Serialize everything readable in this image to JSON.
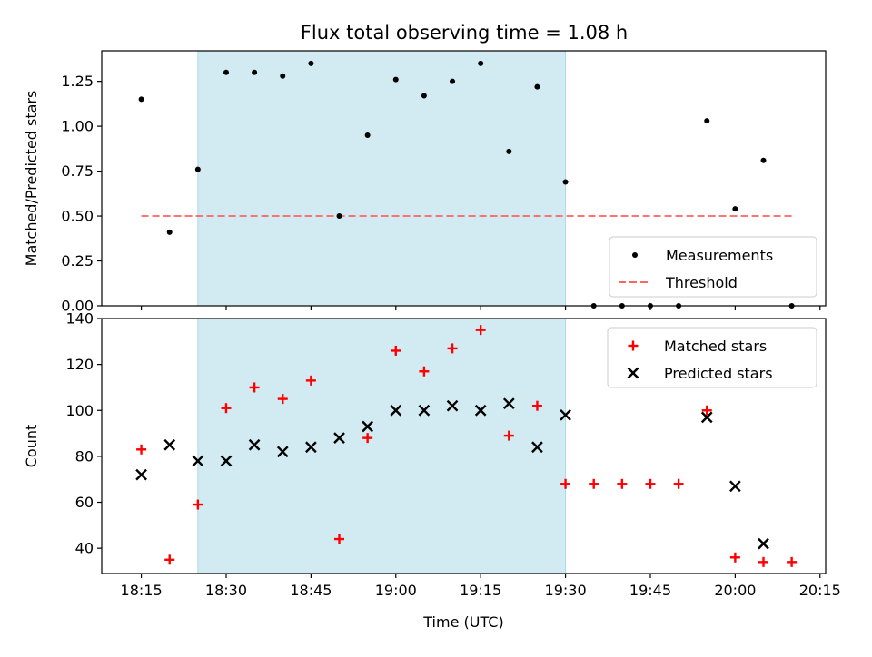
{
  "figure": {
    "title": "Flux total observing time = 1.08 h"
  },
  "chart_data": [
    {
      "type": "scatter",
      "panel": "top",
      "ylabel": "Matched/Predicted stars",
      "xlabel": "",
      "xlim": [
        "18:08",
        "20:16"
      ],
      "ylim": [
        0,
        1.42
      ],
      "y_ticks": [
        "0.00",
        "0.25",
        "0.50",
        "0.75",
        "1.00",
        "1.25"
      ],
      "y_tick_values": [
        0,
        0.25,
        0.5,
        0.75,
        1.0,
        1.25
      ],
      "shaded_span": {
        "x": [
          "18:25",
          "19:30"
        ],
        "color": "#add8e6"
      },
      "legend": {
        "placement": "lower-right"
      },
      "series": [
        {
          "name": "Measurements",
          "marker": "dot",
          "color": "#000000",
          "x": [
            "18:15",
            "18:20",
            "18:25",
            "18:30",
            "18:35",
            "18:40",
            "18:45",
            "18:50",
            "18:55",
            "19:00",
            "19:05",
            "19:10",
            "19:15",
            "19:20",
            "19:25",
            "19:30",
            "19:35",
            "19:40",
            "19:45",
            "19:50",
            "19:55",
            "20:00",
            "20:05",
            "20:10"
          ],
          "y": [
            1.15,
            0.41,
            0.76,
            1.3,
            1.3,
            1.28,
            1.35,
            0.5,
            0.95,
            1.26,
            1.17,
            1.25,
            1.35,
            0.86,
            1.22,
            0.69,
            0.0,
            0.0,
            0.0,
            0.0,
            1.03,
            0.54,
            0.81,
            0.0
          ]
        },
        {
          "name": "Threshold",
          "type": "line",
          "style": "dashed",
          "color": "#ff6666",
          "x": [
            "18:15",
            "20:10"
          ],
          "y": [
            0.5,
            0.5
          ]
        }
      ]
    },
    {
      "type": "scatter",
      "panel": "bottom",
      "ylabel": "Count",
      "xlabel": "Time (UTC)",
      "xlim": [
        "18:08",
        "20:16"
      ],
      "ylim": [
        29,
        140
      ],
      "y_ticks": [
        "40",
        "60",
        "80",
        "100",
        "120",
        "140"
      ],
      "y_tick_values": [
        40,
        60,
        80,
        100,
        120,
        140
      ],
      "x_ticks": [
        "18:15",
        "18:30",
        "18:45",
        "19:00",
        "19:15",
        "19:30",
        "19:45",
        "20:00",
        "20:15"
      ],
      "shaded_span": {
        "x": [
          "18:25",
          "19:30"
        ],
        "color": "#add8e6"
      },
      "legend": {
        "placement": "upper-right"
      },
      "series": [
        {
          "name": "Matched stars",
          "marker": "plus",
          "color": "#ff0000",
          "x": [
            "18:15",
            "18:20",
            "18:25",
            "18:30",
            "18:35",
            "18:40",
            "18:45",
            "18:50",
            "18:55",
            "19:00",
            "19:05",
            "19:10",
            "19:15",
            "19:20",
            "19:25",
            "19:30",
            "19:35",
            "19:40",
            "19:45",
            "19:50",
            "19:55",
            "20:00",
            "20:05",
            "20:10"
          ],
          "y": [
            83,
            35,
            59,
            101,
            110,
            105,
            113,
            44,
            88,
            126,
            117,
            127,
            135,
            89,
            102,
            68,
            68,
            68,
            68,
            68,
            100,
            36,
            34,
            34
          ]
        },
        {
          "name": "Predicted stars",
          "marker": "x",
          "color": "#000000",
          "x": [
            "18:15",
            "18:20",
            "18:25",
            "18:30",
            "18:35",
            "18:40",
            "18:45",
            "18:50",
            "18:55",
            "19:00",
            "19:05",
            "19:10",
            "19:15",
            "19:20",
            "19:25",
            "19:30",
            "19:55",
            "20:00",
            "20:05"
          ],
          "y": [
            72,
            85,
            78,
            78,
            85,
            82,
            84,
            88,
            93,
            100,
            100,
            102,
            100,
            103,
            84,
            98,
            97,
            67,
            42
          ]
        }
      ]
    }
  ]
}
